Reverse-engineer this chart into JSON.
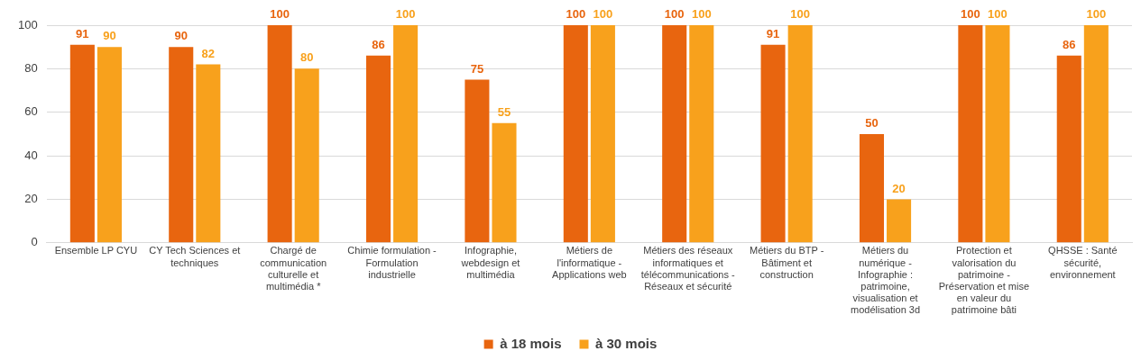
{
  "chart_data": {
    "type": "bar",
    "categories": [
      "Ensemble LP CYU",
      "CY Tech Sciences et techniques",
      "Chargé de communication culturelle et multimédia *",
      "Chimie formulation - Formulation industrielle",
      "Infographie, webdesign et multimédia",
      "Métiers de l'informatique - Applications web",
      "Métiers des réseaux informatiques et télécommunications - Réseaux et sécurité",
      "Métiers du BTP - Bâtiment et construction",
      "Métiers du numérique - Infographie : patrimoine, visualisation et modélisation 3d",
      "Protection et valorisation du patrimoine - Préservation et mise en valeur du patrimoine bâti",
      "QHSSE : Santé sécurité, environnement"
    ],
    "series": [
      {
        "name": "à 18 mois",
        "color": "#e8650f",
        "values": [
          91,
          90,
          100,
          86,
          75,
          100,
          100,
          91,
          50,
          100,
          86
        ]
      },
      {
        "name": "à 30 mois",
        "color": "#f8a11c",
        "values": [
          90,
          82,
          80,
          100,
          55,
          100,
          100,
          100,
          20,
          100,
          100
        ]
      }
    ],
    "ylim": [
      0,
      100
    ],
    "yticks": [
      0,
      20,
      40,
      60,
      80,
      100
    ],
    "grid": "y",
    "legend": "bottom",
    "data_labels": true
  }
}
